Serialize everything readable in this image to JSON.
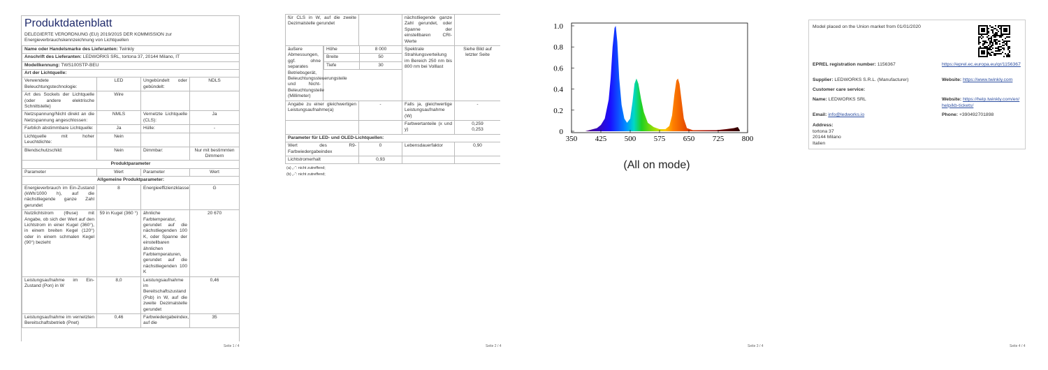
{
  "pages": [
    {
      "title": "Produktdatenblatt",
      "subtitle": "DELEGIERTE VERORDNUNG (EU) 2019/2015 DER KOMMISSION zur Energieverbrauchskennzeichnung von Lichtquellen",
      "info": [
        {
          "label": "Name oder Handelsmarke des Lieferanten:",
          "value": "Twinkly"
        },
        {
          "label": "Anschrift des Lieferanten:",
          "value": "LEDWORKS SRL, tortona 37, 20144 Milano, IT"
        },
        {
          "label": "Modellkennung:",
          "value": "TWS100STP-BEU"
        }
      ],
      "section": "Art der Lichtquelle:",
      "table": [
        {
          "cells": [
            "Verwendete Beleuchtungstechnologie:",
            "LED",
            "Ungebündelt oder gebündelt:",
            "NDLS"
          ]
        },
        {
          "cells": [
            "Art des Sockels der Lichtquelle (oder andere elektrische Schnittstelle)",
            "Wire",
            null,
            null
          ]
        },
        {
          "cells": [
            "Netzspannung/Nicht direkt an die Netzspannung angeschlossen:",
            "NMLS",
            "Vernetzte Lichtquelle (CLS):",
            "Ja"
          ]
        },
        {
          "cells": [
            "Farblich abstimmbare Lichtquelle:",
            "Ja",
            "Hülle:",
            "-"
          ]
        },
        {
          "cells": [
            "Lichtquelle mit hoher Leuchtdichte:",
            "Nein",
            null,
            null
          ]
        },
        {
          "cells": [
            "Blendschutzschild:",
            "Nein",
            "Dimmbar:",
            "Nur mit bestimmten Dimmern"
          ]
        },
        {
          "heading": "Produktparameter"
        },
        {
          "cells": [
            "Parameter",
            "Wert",
            "Parameter",
            "Wert"
          ]
        },
        {
          "heading": "Allgemeine Produktparameter:"
        },
        {
          "cells": [
            "Energieverbrauch im Ein-Zustand (kWh/1000 h), auf die nächstliegende ganze Zahl gerundet",
            "8",
            "Energieeffizienzklasse",
            "G"
          ]
        },
        {
          "cells": [
            "Nutzlichtstrom (Φuse) mit Angabe, ob sich der Wert auf den Lichtstrom in einer Kugel (360°), in einem breiten Kegel (120°) oder in einem schmalen Kegel (90°) bezieht",
            "59 in Kugel (360 °)",
            "ähnliche Farbtemperatur, gerundet auf die nächstliegenden 100 K, oder Spanne der einstellbaren ähnlichen Farbtemperaturen, gerundet auf die nächstliegenden 100 K",
            "20 670"
          ]
        },
        {
          "cells": [
            "Leistungsaufnahme im Ein-Zustand (Pon) in W",
            "8,0",
            "Leistungsaufnahme im Bereitschaftszustand (Psb) in W, auf die zweite Dezimalstelle gerundet",
            "0,46"
          ]
        },
        {
          "cells": [
            "Leistungsaufnahme im vernetzten Bereitschaftsbetrieb (Pnet)",
            "0,46",
            "Farbwiedergabeindex, auf die",
            "35"
          ]
        }
      ],
      "footer": "Seite 1 / 4"
    },
    {
      "table": [
        {
          "cells": [
            "für CLS in W, auf die zweite Dezimalstelle gerundet",
            null,
            "nächstliegende ganze Zahl gerundet, oder Spanne der einstellbaren CRI-Werte",
            null
          ]
        },
        {
          "cells": [
            "äußere Abmessungen, ggf. ohne separates Betriebsgerät, Beleuchtungssteuerungsteile und Nicht-Beleuchtungsteile (Millimeter)",
            [
              [
                "Höhe",
                "8 000"
              ],
              [
                "Breite",
                "50"
              ],
              [
                "Tiefe",
                "30"
              ]
            ],
            "Spektrale Strahlungsverteilung im Bereich 250 nm bis 800 nm bei Volllast",
            "Siehe Bild auf letzter Seite"
          ]
        },
        {
          "cells": [
            "Angabe zu einer gleichwertigen Leistungsaufnahme(a)",
            "-",
            "Falls ja, gleichwertige Leistungsaufnahme (W)",
            "-"
          ]
        },
        {
          "cells": [
            null,
            null,
            "Farbwertanteile (x und y)",
            "0,259\n0,253"
          ]
        },
        {
          "heading": "Parameter für LED- und OLED-Lichtquellen:"
        },
        {
          "cells": [
            "Wert des R9-Farbwiedergabeindex",
            "0",
            "Lebensdauerfaktor",
            "0,90"
          ]
        },
        {
          "cells": [
            "Lichtstromerhalt",
            "0,93",
            null,
            null
          ]
        }
      ],
      "notes": [
        "(a) „-“: nicht zutreffend;",
        "(b) „-“: nicht zutreffend;"
      ],
      "footer": "Seite 2 / 4"
    },
    {
      "chart": {
        "type": "area",
        "x": [
          385,
          395,
          405,
          415,
          425,
          435,
          445,
          450,
          455,
          460,
          463,
          467,
          472,
          478,
          485,
          492,
          500,
          506,
          511,
          516,
          521,
          528,
          535,
          545,
          560,
          575,
          590,
          600,
          607,
          613,
          618,
          622,
          626,
          631,
          637,
          645,
          660,
          690,
          720,
          745,
          765,
          775,
          780
        ],
        "values": [
          0,
          0.01,
          0.02,
          0.03,
          0.06,
          0.12,
          0.3,
          0.5,
          0.8,
          0.98,
          1.0,
          0.85,
          0.5,
          0.25,
          0.12,
          0.08,
          0.12,
          0.28,
          0.45,
          0.5,
          0.45,
          0.3,
          0.18,
          0.08,
          0.04,
          0.02,
          0.02,
          0.05,
          0.15,
          0.35,
          0.48,
          0.5,
          0.45,
          0.3,
          0.12,
          0.03,
          0.01,
          0.01,
          0.01,
          0.02,
          0.03,
          0.04,
          0.01
        ],
        "xlim": [
          350,
          800
        ],
        "ylim": [
          0,
          1.0
        ],
        "xticks": [
          350,
          425,
          500,
          575,
          650,
          725,
          800
        ],
        "yticks": [
          0,
          0.2,
          0.4,
          0.6,
          0.8,
          {
            "value": 1.0,
            "label": "1.0"
          }
        ]
      },
      "caption": "(All on mode)",
      "footer": "Seite 3 / 4"
    },
    {
      "heading": "Model placed on the Union market from 01/01/2020",
      "rows": [
        [
          {
            "label": "EPREL registration number:",
            "value": "1156367"
          },
          {
            "link": "https://eprel.ec.europa.eu/qr/1156367"
          }
        ],
        [
          {
            "label": "Supplier:",
            "value": "LEDWORKS S.R.L. (Manufacturer)"
          },
          {
            "label": "Website:",
            "link": "https://www.twinkly.com"
          }
        ],
        [
          {
            "label": "Customer care service:"
          }
        ],
        [
          {
            "label": "Name:",
            "value": "LEDWORKS SRL"
          },
          {
            "label": "Website:",
            "link": "https://help.twinkly.com/en/help/kb-tickets/"
          }
        ],
        [
          {
            "label": "Email:",
            "link": "info@ledworks.io"
          },
          {
            "label": "Phone:",
            "value": "+390492701898"
          }
        ],
        [
          {
            "label": "Address:",
            "lines": [
              "tortona 37",
              "20144 Milano",
              "Italien"
            ]
          }
        ]
      ],
      "footer": "Seite 4 / 4"
    }
  ]
}
